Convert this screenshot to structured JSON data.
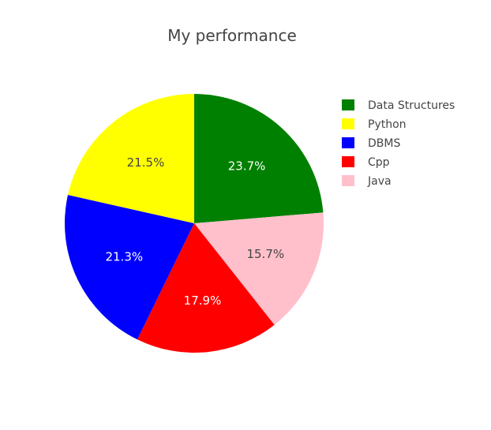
{
  "chart_data": {
    "type": "pie",
    "title": "My performance",
    "labels": [
      "Data Structures",
      "Python",
      "DBMS",
      "Cpp",
      "Java"
    ],
    "percent_labels": [
      "23.7%",
      "21.5%",
      "21.3%",
      "17.9%",
      "15.7%"
    ],
    "values": [
      23.7,
      21.5,
      21.3,
      17.9,
      15.7
    ],
    "colors": [
      "#008000",
      "#ffff00",
      "#0000ff",
      "#ff0000",
      "#ffc0cb"
    ],
    "label_colors": [
      "#ffffff",
      "#444444",
      "#ffffff",
      "#ffffff",
      "#444444"
    ],
    "slice_draw_order": [
      0,
      4,
      3,
      2,
      1
    ],
    "direction": "clockwise",
    "start_angle": "12 o'clock",
    "legend": "top-right"
  }
}
